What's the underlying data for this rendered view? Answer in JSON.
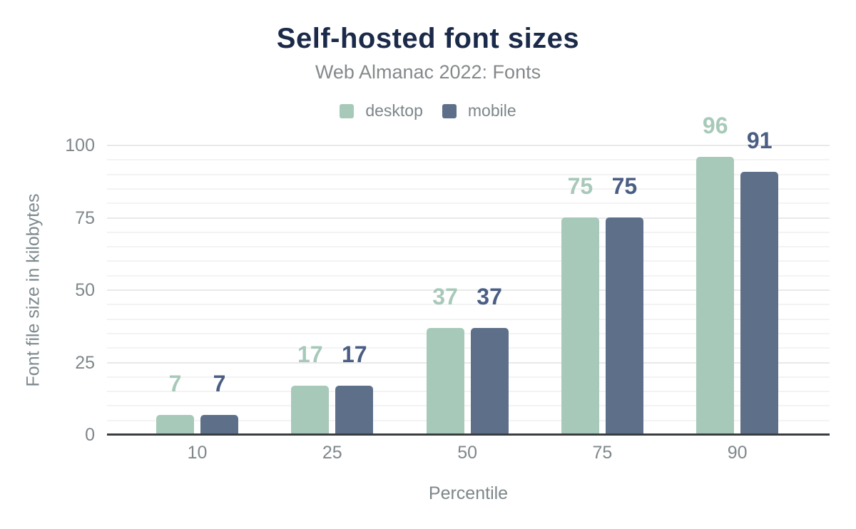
{
  "chart_data": {
    "type": "bar",
    "title": "Self-hosted font sizes",
    "subtitle": "Web Almanac 2022: Fonts",
    "xlabel": "Percentile",
    "ylabel": "Font file size in kilobytes",
    "categories": [
      "10",
      "25",
      "50",
      "75",
      "90"
    ],
    "series": [
      {
        "name": "desktop",
        "color": "#a7c9b9",
        "label_color": "#a7c9b9",
        "values": [
          7,
          17,
          37,
          75,
          96
        ]
      },
      {
        "name": "mobile",
        "color": "#5e7089",
        "label_color": "#4a5e84",
        "values": [
          7,
          17,
          37,
          75,
          91
        ]
      }
    ],
    "ylim": [
      0,
      100
    ],
    "yticks": [
      0,
      25,
      50,
      75,
      100
    ],
    "minor_grid_step": 5,
    "grid": "horizontal",
    "legend_position": "top",
    "colors": {
      "title": "#1b2a49",
      "subtitle": "#85898c",
      "axis_text": "#7f878b",
      "axis_line": "#3a3d40",
      "grid_major": "#e9e9e9",
      "grid_minor": "#f3f3f3",
      "background": "#ffffff"
    }
  }
}
